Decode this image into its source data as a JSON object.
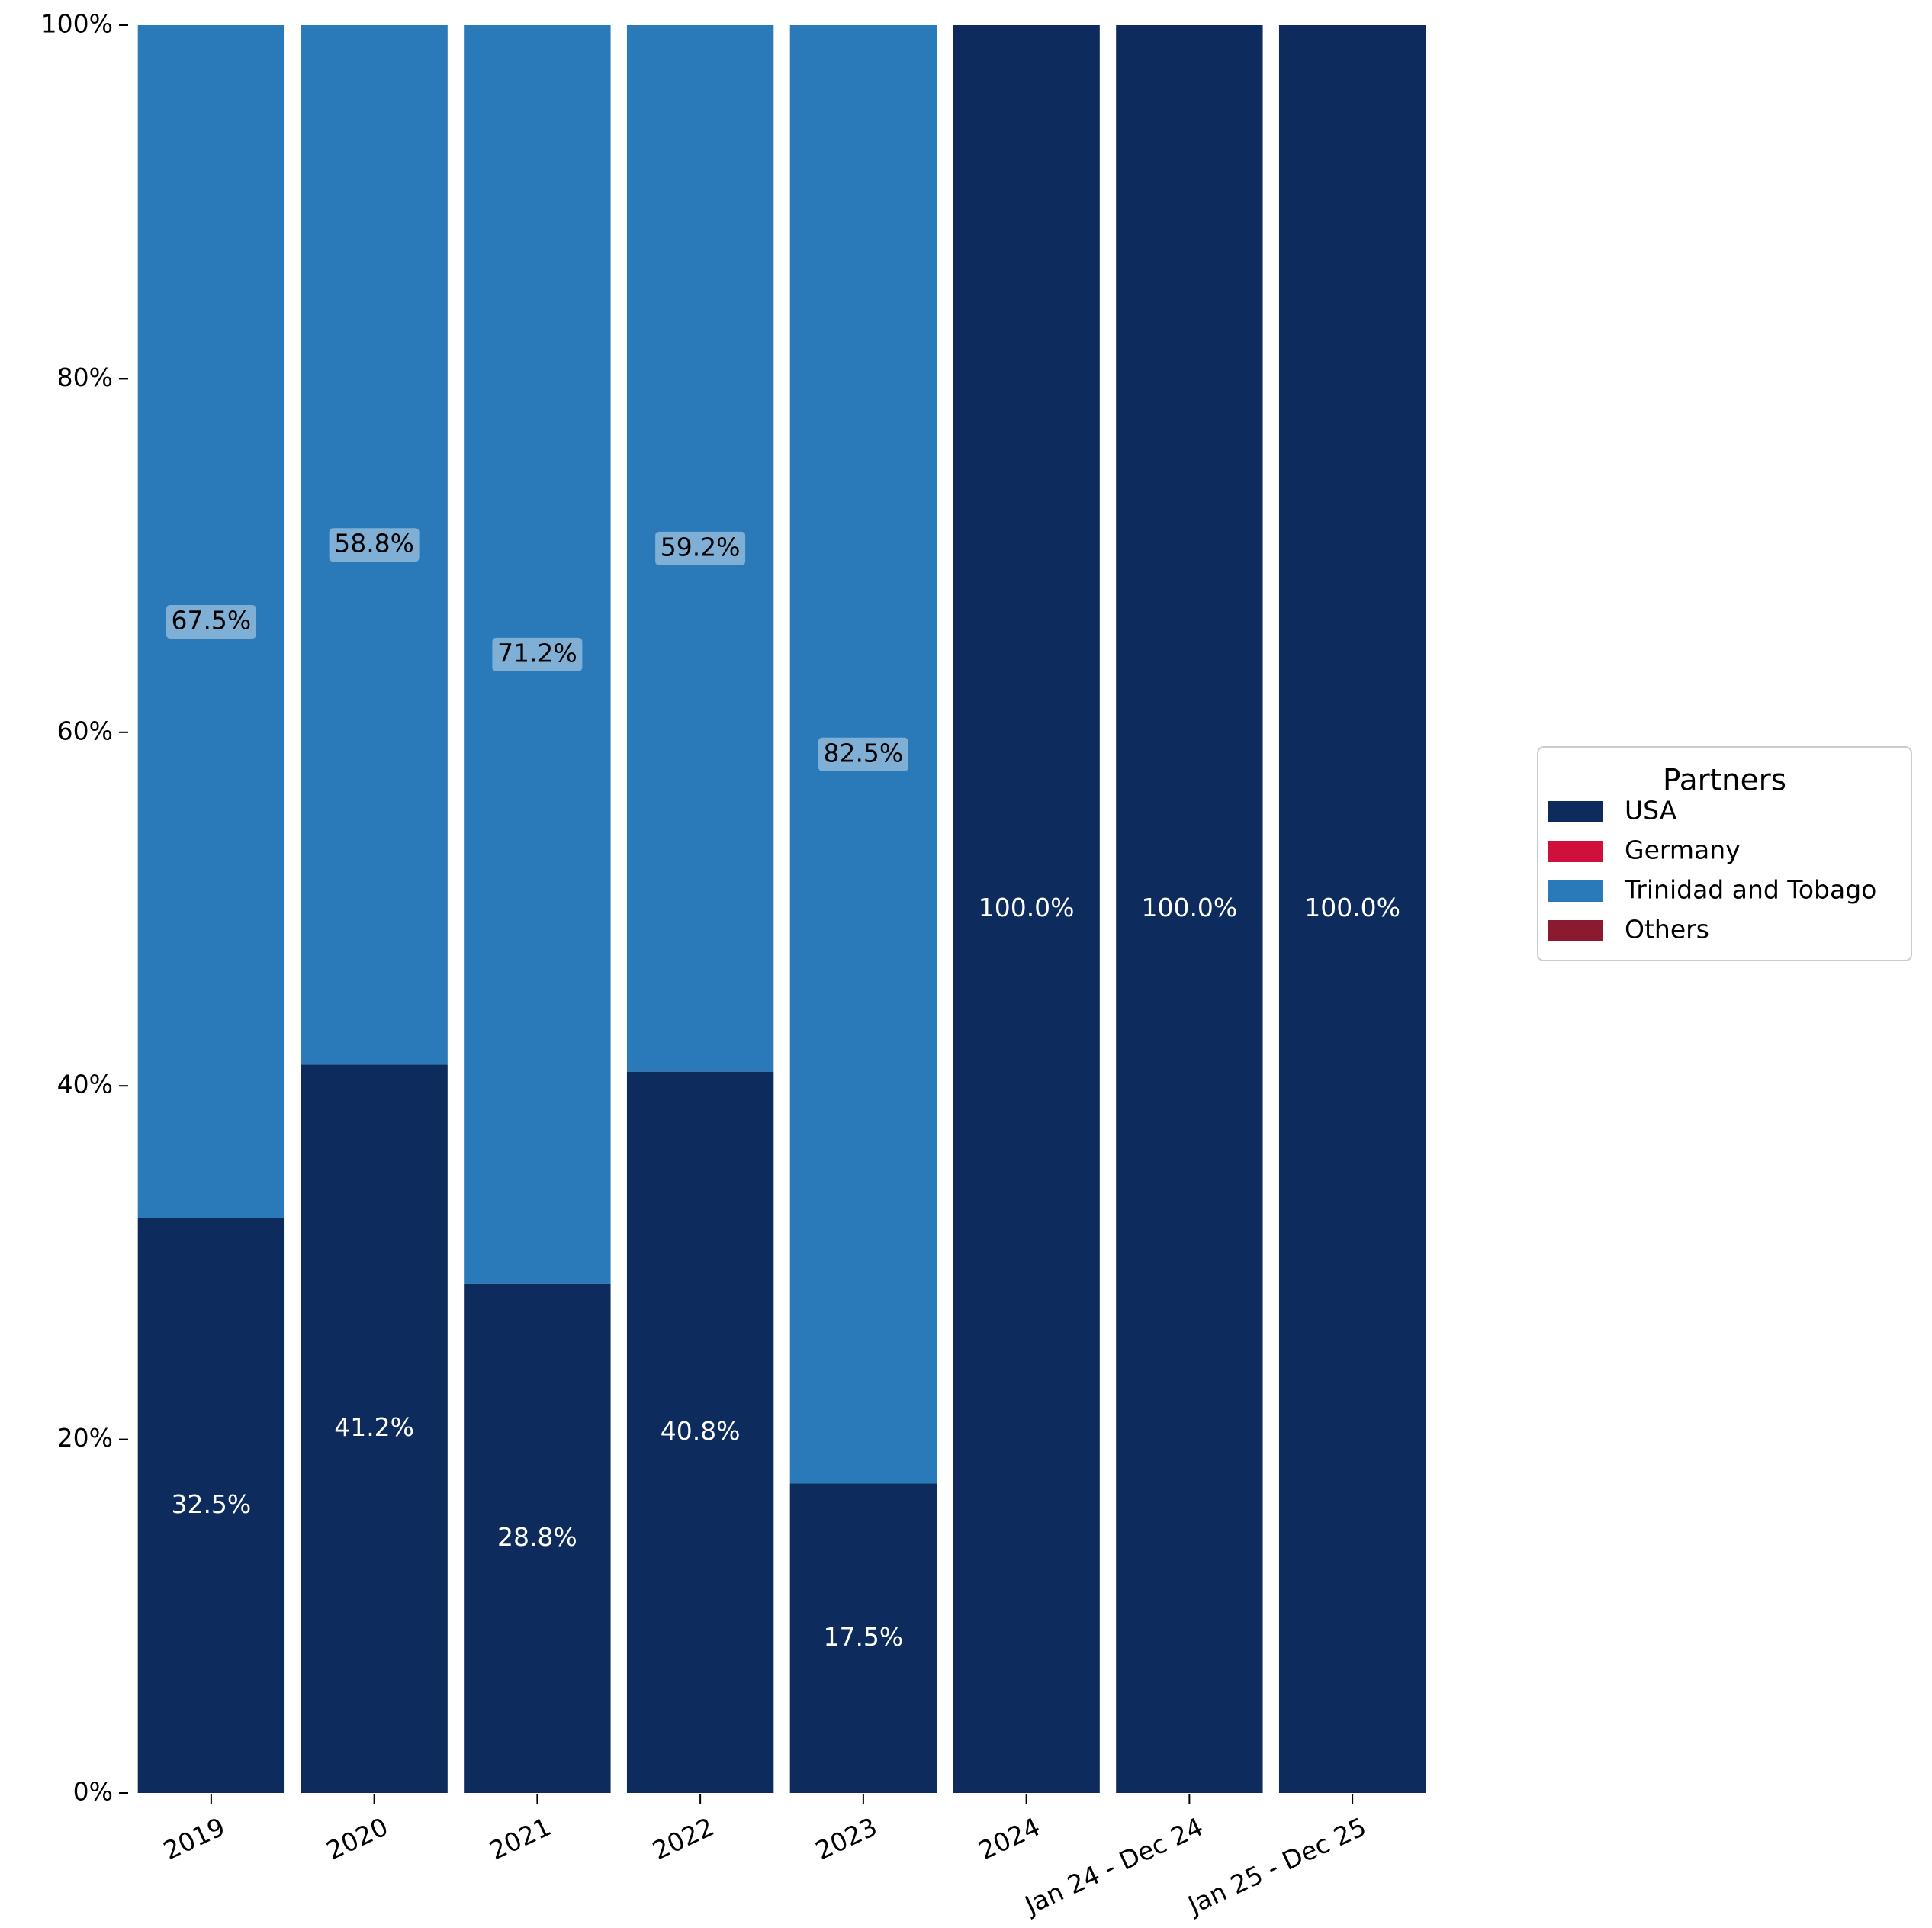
{
  "chart_data": {
    "type": "bar",
    "stacked": true,
    "normalized": true,
    "categories": [
      "2019",
      "2020",
      "2021",
      "2022",
      "2023",
      "2024",
      "Jan 24 - Dec 24",
      "Jan 25 - Dec 25"
    ],
    "series": [
      {
        "name": "USA",
        "color": "#0d2b5c",
        "values": [
          32.5,
          41.2,
          28.8,
          40.8,
          17.5,
          100.0,
          100.0,
          100.0
        ],
        "labels": [
          "32.5%",
          "41.2%",
          "28.8%",
          "40.8%",
          "17.5%",
          "100.0%",
          "100.0%",
          "100.0%"
        ]
      },
      {
        "name": "Germany",
        "color": "#cf0f3c",
        "values": [
          0,
          0,
          0,
          0,
          0,
          0,
          0,
          0
        ],
        "labels": [
          "",
          "",
          "",
          "",
          "",
          "",
          "",
          ""
        ]
      },
      {
        "name": "Trinidad and Tobago",
        "color": "#2a7ab9",
        "values": [
          67.5,
          58.8,
          71.2,
          59.2,
          82.5,
          0,
          0,
          0
        ],
        "labels": [
          "67.5%",
          "58.8%",
          "71.2%",
          "59.2%",
          "82.5%",
          "",
          "",
          ""
        ]
      },
      {
        "name": "Others",
        "color": "#8b1a30",
        "values": [
          0,
          0,
          0,
          0,
          0,
          0,
          0,
          0
        ],
        "labels": [
          "",
          "",
          "",
          "",
          "",
          "",
          "",
          ""
        ]
      }
    ],
    "ylim": [
      0,
      100
    ],
    "yticks": [
      0,
      20,
      40,
      60,
      80,
      100
    ],
    "ytick_labels": [
      "0%",
      "20%",
      "40%",
      "60%",
      "80%",
      "100%"
    ],
    "title": "",
    "xlabel": "",
    "ylabel": "",
    "grid": false,
    "legend": {
      "title": "Partners",
      "placement": "right"
    }
  }
}
